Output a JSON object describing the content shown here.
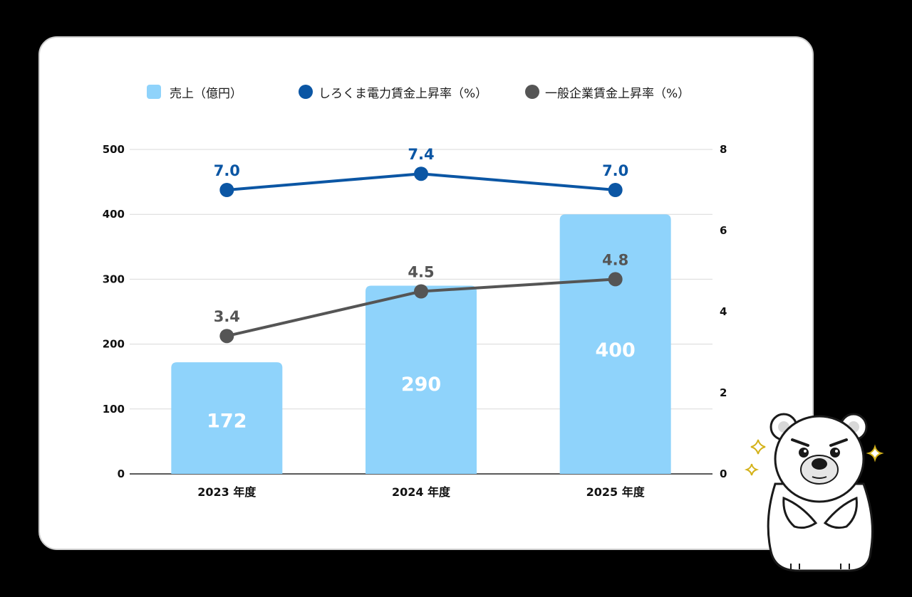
{
  "legend": [
    {
      "label": "売上（億円）",
      "shape": "square",
      "color": "#8fd3fb"
    },
    {
      "label": "しろくま電力賃金上昇率（%）",
      "shape": "circle",
      "color": "#0b56a4"
    },
    {
      "label": "一般企業賃金上昇率（%）",
      "shape": "circle",
      "color": "#555555"
    }
  ],
  "chart_data": {
    "type": "bar",
    "categories": [
      "2023 年度",
      "2024 年度",
      "2025 年度"
    ],
    "y_left": {
      "ticks": [
        "0",
        "100",
        "200",
        "300",
        "400",
        "500"
      ],
      "range": [
        0,
        500
      ]
    },
    "y_right": {
      "ticks": [
        "0",
        "2",
        "4",
        "6",
        "8"
      ],
      "range": [
        0,
        8
      ]
    },
    "bars": {
      "name": "売上（億円）",
      "values": [
        172,
        290,
        400
      ],
      "labels": [
        "172",
        "290",
        "400"
      ],
      "color": "#8fd3fb"
    },
    "lines": [
      {
        "name": "しろくま電力賃金上昇率（%）",
        "values": [
          7.0,
          7.4,
          7.0
        ],
        "labels": [
          "7.0",
          "7.4",
          "7.0"
        ],
        "color": "#0b56a4"
      },
      {
        "name": "一般企業賃金上昇率（%）",
        "values": [
          3.4,
          4.5,
          4.8
        ],
        "labels": [
          "3.4",
          "4.5",
          "4.8"
        ],
        "color": "#555555"
      }
    ],
    "grid": true,
    "legend_position": "top"
  }
}
